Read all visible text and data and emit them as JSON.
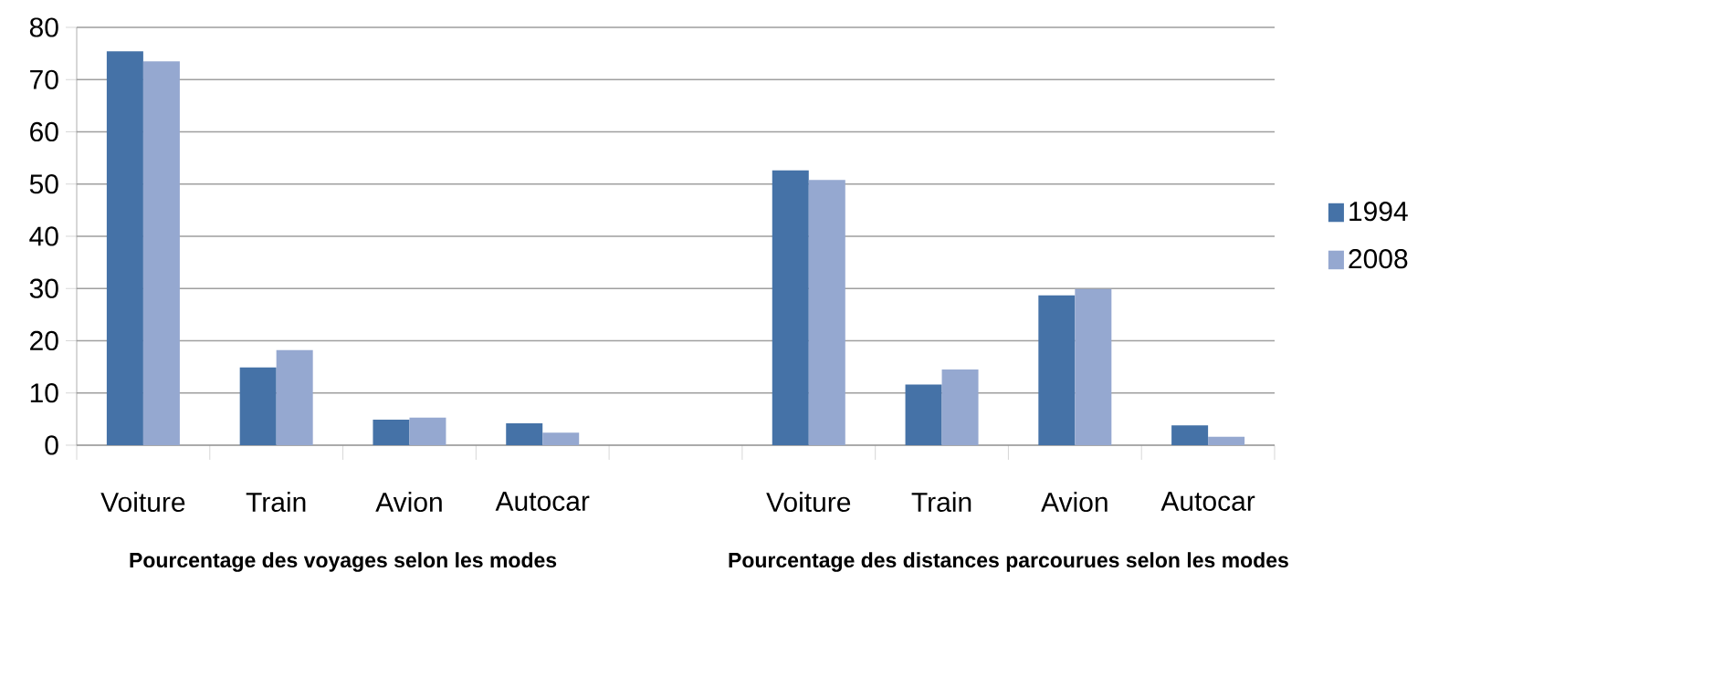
{
  "chart_data": {
    "type": "bar",
    "categories": [
      "Voiture",
      "Train",
      "Avion",
      "Autocar",
      null,
      "Voiture",
      "Train",
      "Avion",
      "Autocar"
    ],
    "series": [
      {
        "name": "1994",
        "color": "#4572a7",
        "values": [
          75.4,
          14.9,
          4.9,
          4.2,
          null,
          52.6,
          11.6,
          28.7,
          3.8
        ]
      },
      {
        "name": "2008",
        "color": "#95a8d0",
        "values": [
          73.5,
          18.2,
          5.3,
          2.4,
          null,
          50.8,
          14.5,
          29.9,
          1.6
        ]
      }
    ],
    "ylim": [
      0,
      80
    ],
    "yticks": [
      0,
      10,
      20,
      30,
      40,
      50,
      60,
      70,
      80
    ],
    "grid": "y",
    "legend": "right",
    "annotations": [
      "Pourcentage des voyages selon les modes",
      "Pourcentage des distances parcourues selon les modes"
    ]
  }
}
